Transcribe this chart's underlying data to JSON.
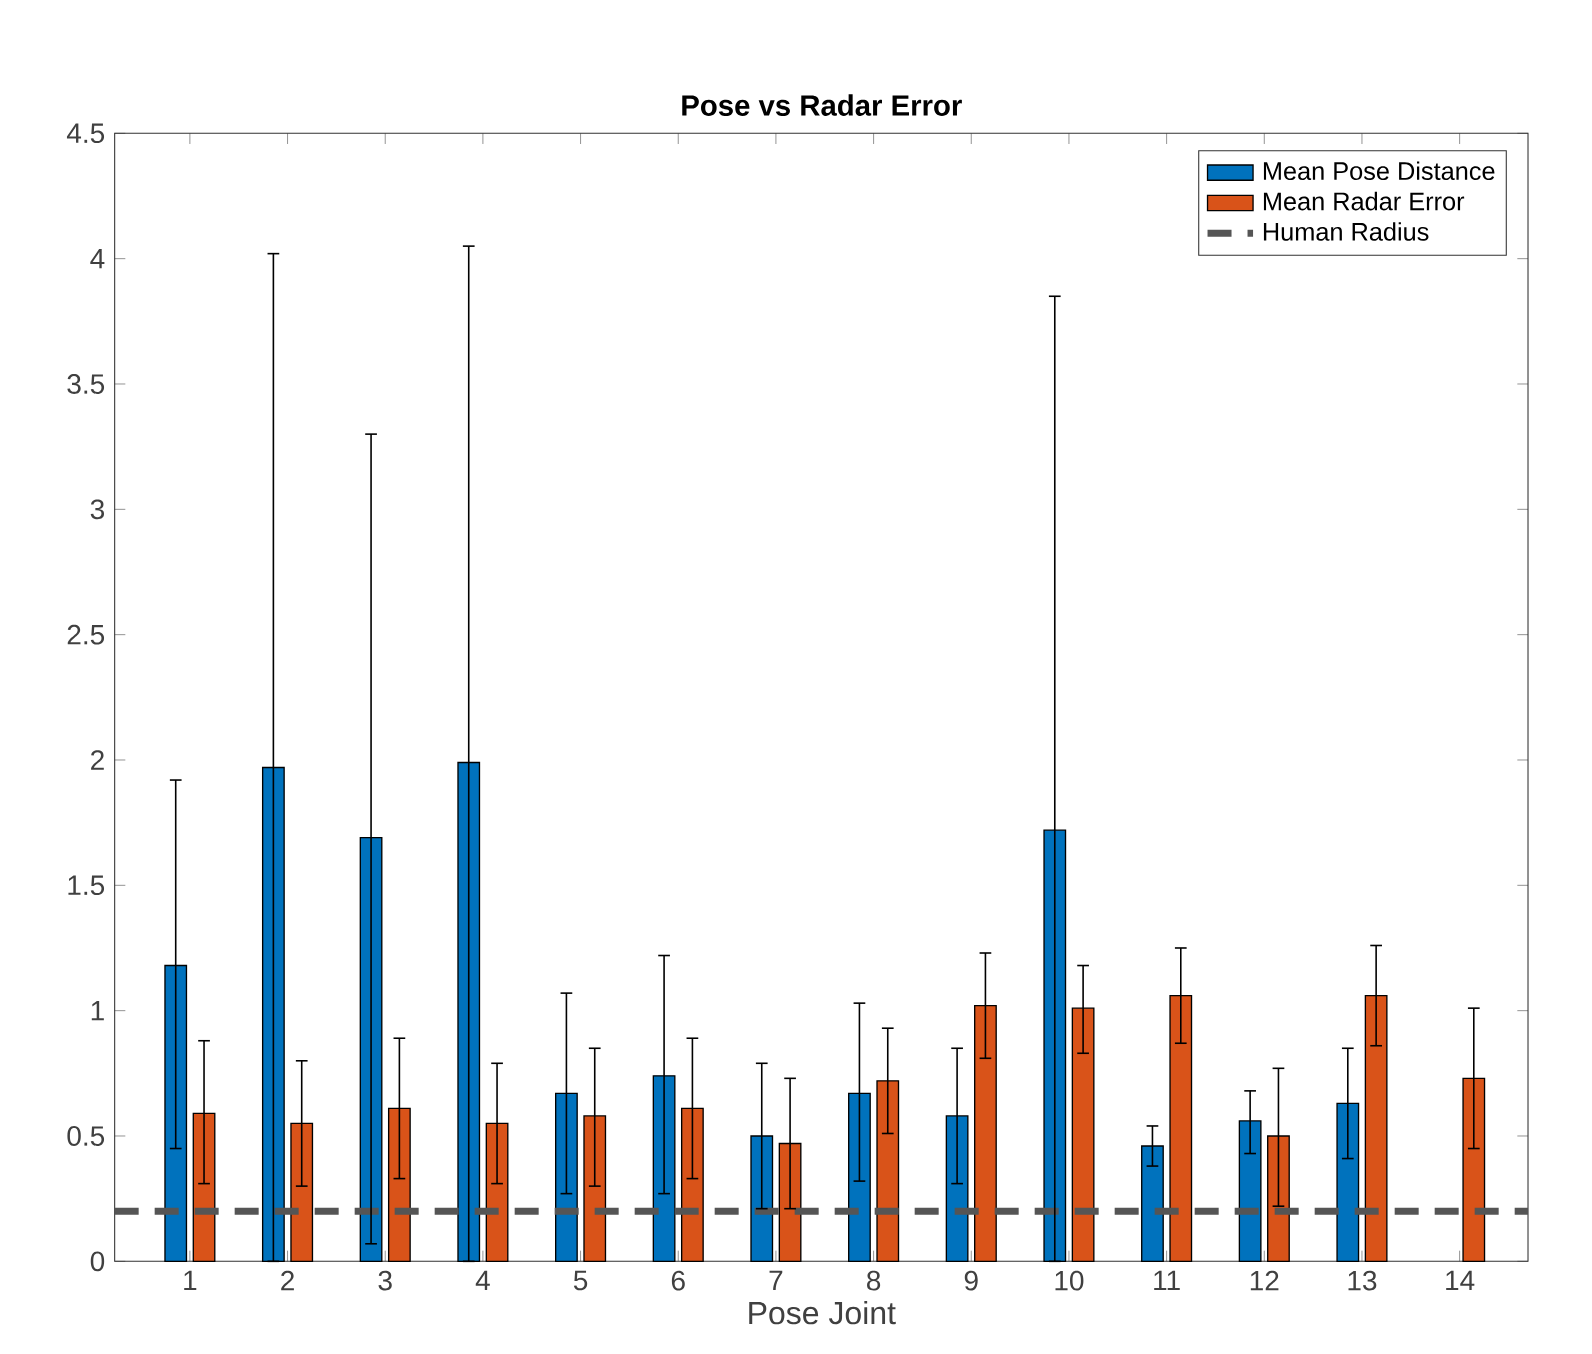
{
  "chart_data": {
    "type": "bar",
    "title": "Pose vs Radar Error",
    "xlabel": "Pose Joint",
    "categories": [
      "1",
      "2",
      "3",
      "4",
      "5",
      "6",
      "7",
      "8",
      "9",
      "10",
      "11",
      "12",
      "13",
      "14"
    ],
    "series": [
      {
        "name": "Mean Pose Distance",
        "color": "#0072bd",
        "values": [
          1.18,
          1.97,
          1.69,
          1.99,
          0.67,
          0.74,
          0.5,
          0.67,
          0.58,
          1.72,
          0.46,
          0.56,
          0.63,
          null
        ],
        "errors": [
          [
            0.45,
            1.92
          ],
          [
            0,
            4.02
          ],
          [
            0.07,
            3.3
          ],
          [
            0,
            4.05
          ],
          [
            0.27,
            1.07
          ],
          [
            0.27,
            1.22
          ],
          [
            0.21,
            0.79
          ],
          [
            0.32,
            1.03
          ],
          [
            0.31,
            0.85
          ],
          [
            0,
            3.85
          ],
          [
            0.38,
            0.54
          ],
          [
            0.43,
            0.68
          ],
          [
            0.41,
            0.85
          ],
          null
        ]
      },
      {
        "name": "Mean Radar Error",
        "color": "#d95319",
        "values": [
          0.59,
          0.55,
          0.61,
          0.55,
          0.58,
          0.61,
          0.47,
          0.72,
          1.02,
          1.01,
          1.06,
          0.5,
          1.06,
          0.73
        ],
        "errors": [
          [
            0.31,
            0.88
          ],
          [
            0.3,
            0.8
          ],
          [
            0.33,
            0.89
          ],
          [
            0.31,
            0.79
          ],
          [
            0.3,
            0.85
          ],
          [
            0.33,
            0.89
          ],
          [
            0.21,
            0.73
          ],
          [
            0.51,
            0.93
          ],
          [
            0.81,
            1.23
          ],
          [
            0.83,
            1.18
          ],
          [
            0.87,
            1.25
          ],
          [
            0.22,
            0.77
          ],
          [
            0.86,
            1.26
          ],
          [
            0.45,
            1.01
          ]
        ]
      }
    ],
    "ref_lines": [
      {
        "axis": "y",
        "value": 0.2,
        "label": "Human Radius",
        "color": "#555555",
        "line_style": "dashed"
      }
    ],
    "ylim": [
      0,
      4.5
    ],
    "yticks": [
      0,
      0.5,
      1,
      1.5,
      2,
      2.5,
      3,
      3.5,
      4,
      4.5
    ],
    "grid": false,
    "legend": "top right"
  }
}
